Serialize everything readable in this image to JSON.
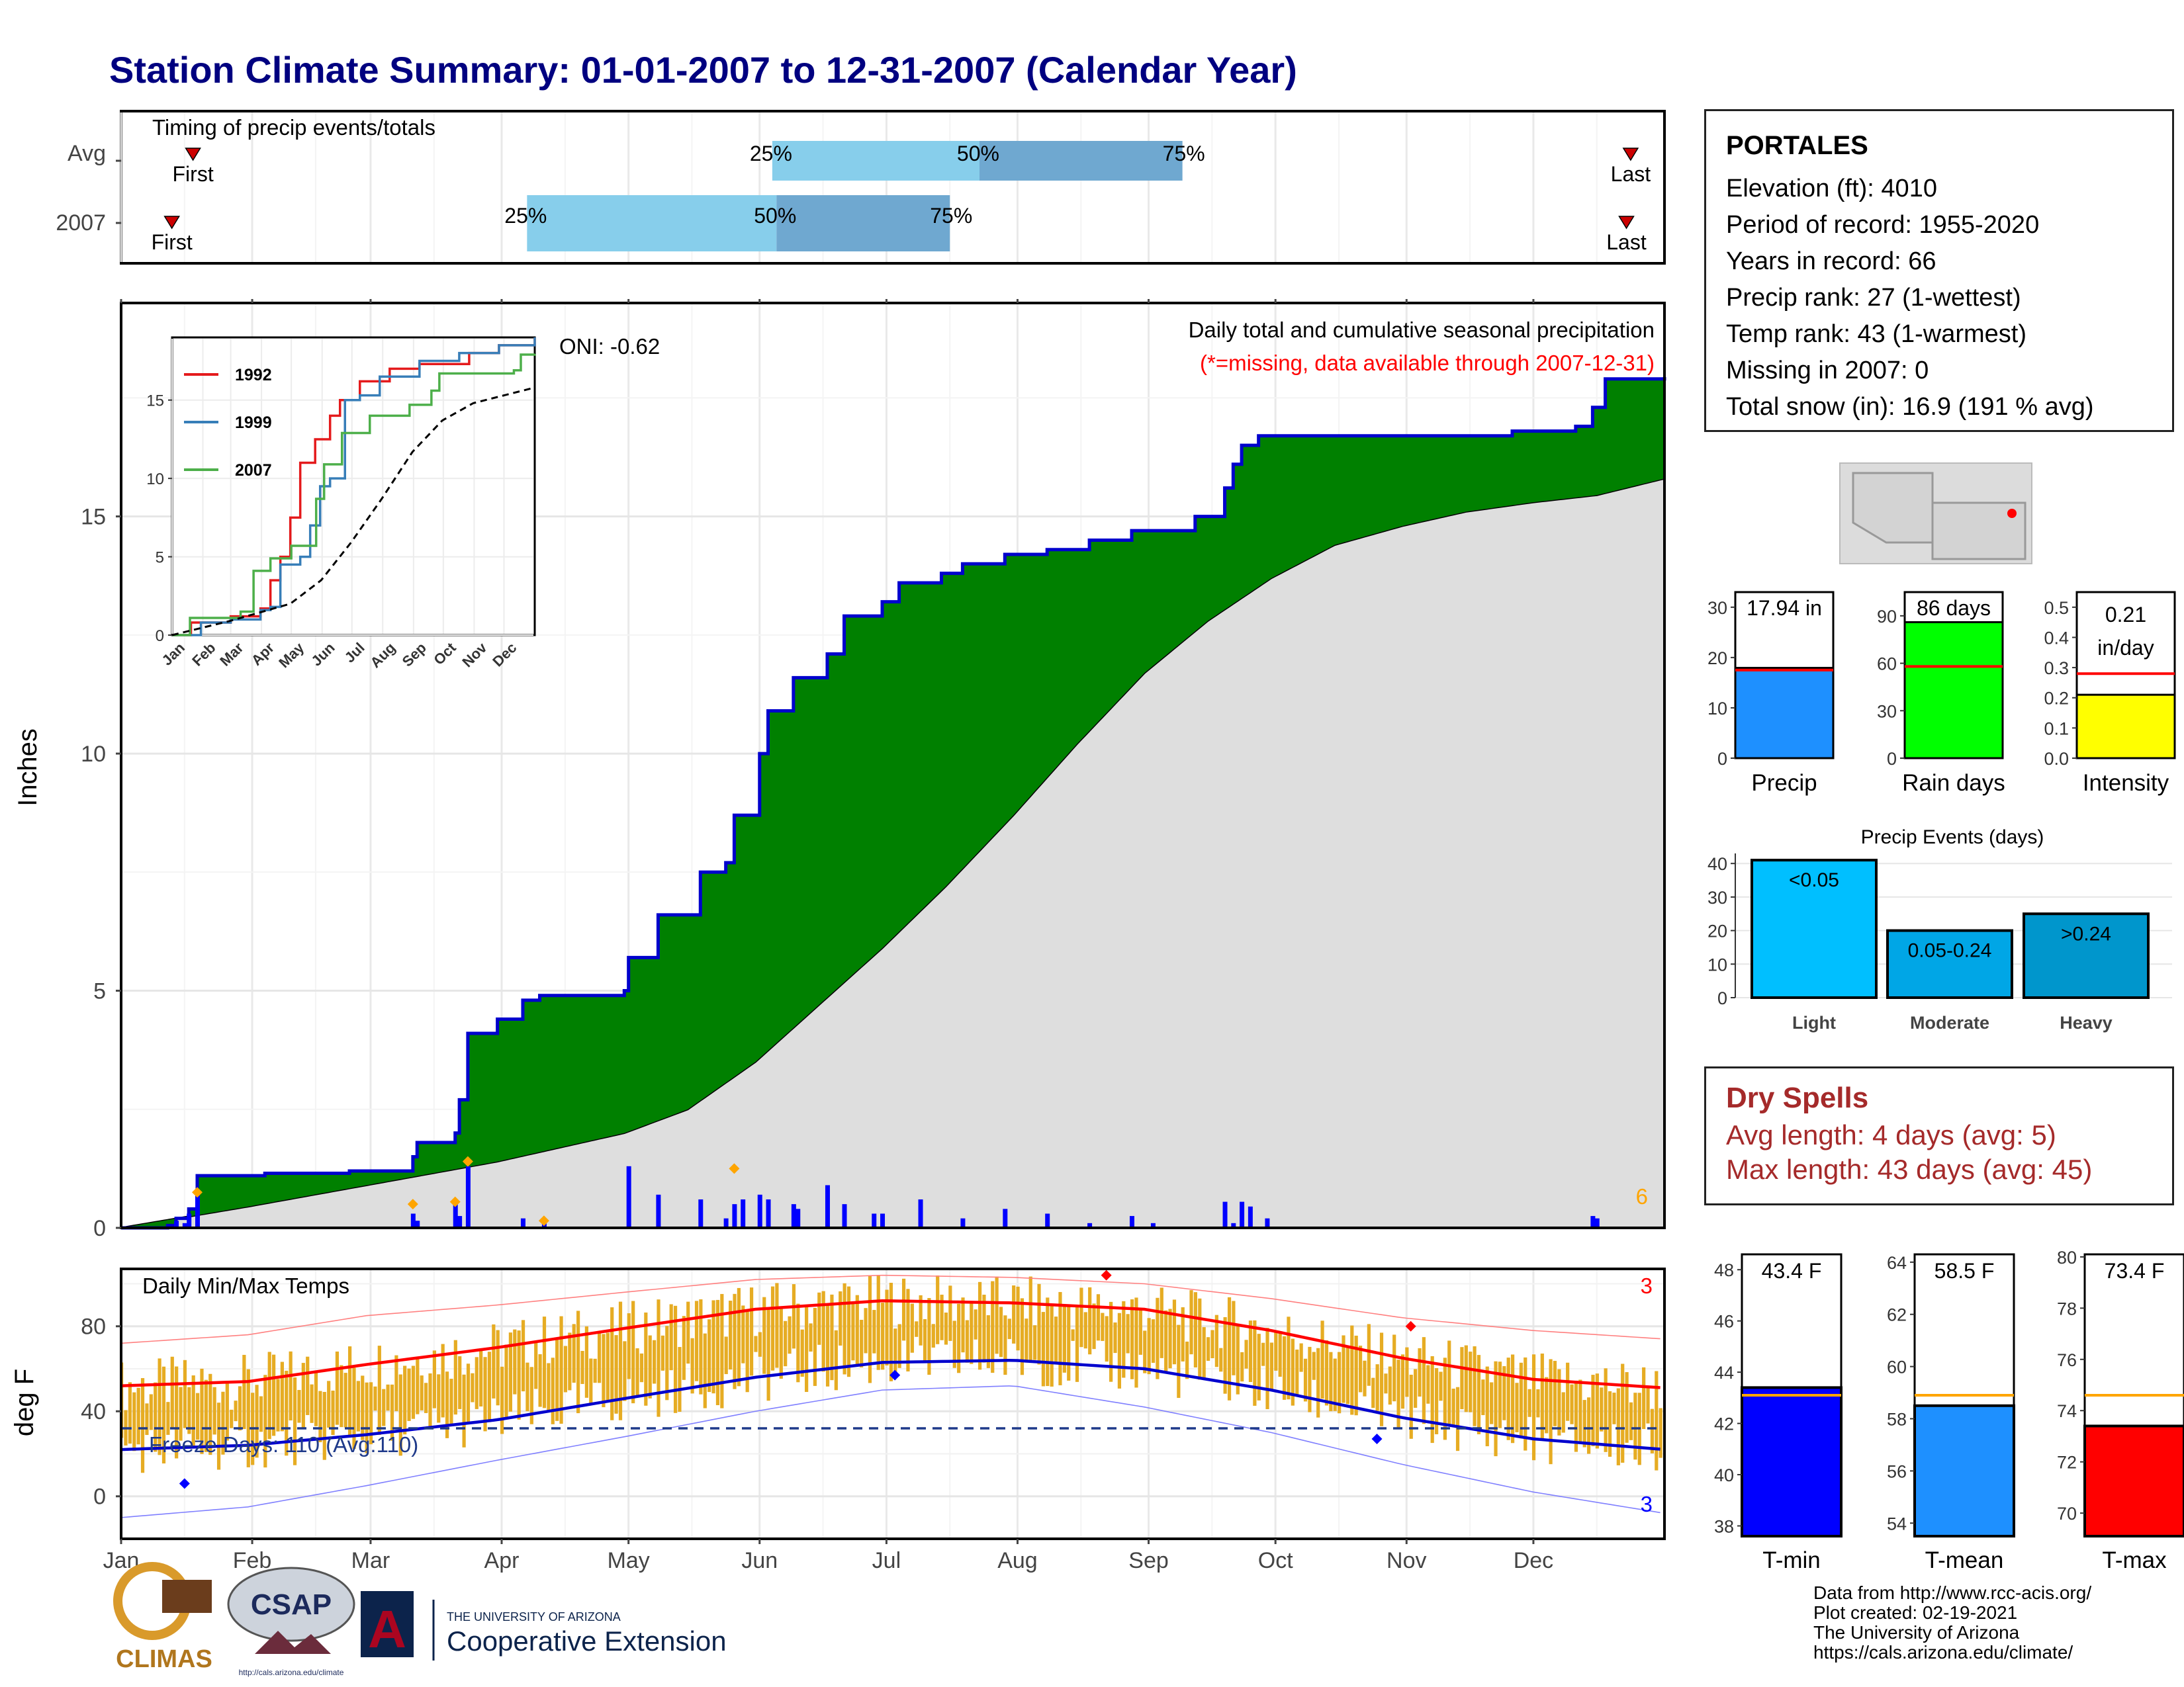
{
  "title": "Station Climate Summary: 01-01-2007 to 12-31-2007 (Calendar Year)",
  "colors": {
    "title": "#000080",
    "light_blue": "#87CEEB",
    "mid_blue": "#6FA8D0",
    "green_fill": "#008000",
    "cum_line": "#0000CD",
    "gray_fill": "#DEDEDE",
    "bar_blue": "#0000FF",
    "diamond_orange": "#FFA500",
    "temp_bar": "#E6AC23",
    "red": "#FF0000",
    "blue": "#0000FF",
    "dry_spell_red": "#A52A2A"
  },
  "timing_panel": {
    "label": "Timing of precip events/totals",
    "rows": [
      "Avg",
      "2007"
    ],
    "first_label": "First",
    "last_label": "Last",
    "pct_labels": [
      "25%",
      "50%",
      "75%"
    ]
  },
  "station_info": {
    "name": "PORTALES",
    "lines": [
      "Elevation (ft): 4010",
      "Period of record: 1955-2020",
      "Years in record: 66",
      "Precip rank: 27 (1-wettest)",
      "Temp rank: 43 (1-warmest)",
      "Missing in 2007: 0",
      "Total snow (in): 16.9 (191 % avg)"
    ]
  },
  "dry_spells": {
    "title": "Dry Spells",
    "line1": "Avg length: 4 days (avg: 5)",
    "line2": "Max length: 43 days (avg: 45)"
  },
  "precip_main": {
    "subtitle": "Daily total and cumulative seasonal precipitation",
    "missing_note": "(*=missing, data available through 2007-12-31)",
    "ylabel": "Inches",
    "count_label": "6",
    "oni_label": "ONI: -0.62"
  },
  "inset": {
    "legend": [
      "1992",
      "1999",
      "2007"
    ],
    "months": [
      "Jan",
      "Feb",
      "Mar",
      "Apr",
      "May",
      "Jun",
      "Jul",
      "Aug",
      "Sep",
      "Oct",
      "Nov",
      "Dec"
    ]
  },
  "temp_panel": {
    "label": "Daily Min/Max Temps",
    "ylabel": "deg F",
    "freeze_label": "Freeze Days: 110 (Avg:110)",
    "max_count": "3",
    "min_count": "3"
  },
  "summary_bars": {
    "precip": {
      "label": "Precip",
      "value_text": "17.94 in"
    },
    "rain_days": {
      "label": "Rain days",
      "value_text": "86 days"
    },
    "intensity": {
      "label": "Intensity",
      "value_text_1": "0.21",
      "value_text_2": "in/day"
    }
  },
  "events_panel": {
    "title": "Precip Events (days)",
    "bar_labels": [
      "<0.05",
      "0.05-0.24",
      ">0.24"
    ],
    "categories": [
      "Light",
      "Moderate",
      "Heavy"
    ]
  },
  "temp_summary": {
    "tmin": {
      "label": "T-min",
      "value_text": "43.4 F"
    },
    "tmean": {
      "label": "T-mean",
      "value_text": "58.5 F"
    },
    "tmax": {
      "label": "T-max",
      "value_text": "73.4 F"
    }
  },
  "footer": {
    "lines": [
      "Data from http://www.rcc-acis.org/",
      "Plot created: 02-19-2021",
      "The University of Arizona",
      "https://cals.arizona.edu/climate/"
    ],
    "logos": {
      "climas": "CLIMAS",
      "csap": "CSAP",
      "csap_url": "http://cals.arizona.edu/climate",
      "uofa_small": "THE UNIVERSITY OF ARIZONA",
      "uofa_big": "Cooperative Extension"
    }
  },
  "chart_data": [
    {
      "type": "bar",
      "id": "timing",
      "title": "Timing of precip events/totals",
      "categories": [
        "Avg",
        "2007"
      ],
      "series": [
        {
          "name": "Avg",
          "first_doy": 18,
          "q25_doy": 155,
          "q50_doy": 204,
          "q75_doy": 252,
          "last_doy": 358
        },
        {
          "name": "2007",
          "first_doy": 13,
          "q25_doy": 97,
          "q50_doy": 156,
          "q75_doy": 197,
          "last_doy": 357
        }
      ],
      "xlim_doy": [
        1,
        366
      ],
      "x_tick_labels": [
        "Jan",
        "Feb",
        "Mar",
        "Apr",
        "May",
        "Jun",
        "Jul",
        "Aug",
        "Sep",
        "Oct",
        "Nov",
        "Dec"
      ]
    },
    {
      "type": "area",
      "id": "cumulative_precip",
      "title": "Daily total and cumulative seasonal precipitation",
      "ylabel": "Inches",
      "ylim": [
        0,
        19.5
      ],
      "y_ticks": [
        0,
        5,
        10,
        15
      ],
      "x_tick_labels": [
        "Jan",
        "Feb",
        "Mar",
        "Apr",
        "May",
        "Jun",
        "Jul",
        "Aug",
        "Sep",
        "Oct",
        "Nov",
        "Dec"
      ],
      "series": [
        {
          "name": "2007 cumulative",
          "steps": [
            [
              1,
              0
            ],
            [
              12,
              0.05
            ],
            [
              14,
              0.2
            ],
            [
              17,
              0.4
            ],
            [
              19,
              1.1
            ],
            [
              35,
              1.15
            ],
            [
              55,
              1.2
            ],
            [
              70,
              1.5
            ],
            [
              71,
              1.8
            ],
            [
              80,
              2.0
            ],
            [
              81,
              2.7
            ],
            [
              83,
              4.1
            ],
            [
              90,
              4.4
            ],
            [
              96,
              4.8
            ],
            [
              100,
              4.9
            ],
            [
              120,
              5.0
            ],
            [
              121,
              5.7
            ],
            [
              128,
              6.6
            ],
            [
              138,
              7.5
            ],
            [
              144,
              7.7
            ],
            [
              146,
              8.7
            ],
            [
              152,
              10.0
            ],
            [
              154,
              10.9
            ],
            [
              160,
              11.6
            ],
            [
              168,
              12.1
            ],
            [
              172,
              12.9
            ],
            [
              181,
              13.2
            ],
            [
              185,
              13.6
            ],
            [
              195,
              13.8
            ],
            [
              200,
              14.0
            ],
            [
              210,
              14.2
            ],
            [
              220,
              14.3
            ],
            [
              230,
              14.5
            ],
            [
              240,
              14.7
            ],
            [
              255,
              15.0
            ],
            [
              262,
              15.6
            ],
            [
              264,
              16.1
            ],
            [
              266,
              16.5
            ],
            [
              270,
              16.7
            ],
            [
              290,
              16.7
            ],
            [
              300,
              16.7
            ],
            [
              330,
              16.8
            ],
            [
              345,
              16.9
            ],
            [
              349,
              17.3
            ],
            [
              352,
              17.9
            ],
            [
              366,
              17.94
            ]
          ]
        },
        {
          "name": "Average cumulative",
          "points": [
            [
              1,
              0
            ],
            [
              31,
              0.45
            ],
            [
              59,
              0.9
            ],
            [
              90,
              1.4
            ],
            [
              120,
              2.0
            ],
            [
              135,
              2.5
            ],
            [
              151,
              3.5
            ],
            [
              166,
              4.7
            ],
            [
              181,
              5.9
            ],
            [
              196,
              7.2
            ],
            [
              212,
              8.7
            ],
            [
              227,
              10.2
            ],
            [
              243,
              11.7
            ],
            [
              258,
              12.8
            ],
            [
              273,
              13.7
            ],
            [
              288,
              14.4
            ],
            [
              304,
              14.8
            ],
            [
              319,
              15.1
            ],
            [
              335,
              15.3
            ],
            [
              350,
              15.45
            ],
            [
              366,
              15.8
            ]
          ]
        }
      ],
      "daily_bars": [
        [
          14,
          0.15
        ],
        [
          16,
          0.1
        ],
        [
          17,
          0.3
        ],
        [
          19,
          0.7
        ],
        [
          70,
          0.3
        ],
        [
          71,
          0.15
        ],
        [
          80,
          0.6
        ],
        [
          81,
          0.25
        ],
        [
          83,
          1.3
        ],
        [
          96,
          0.2
        ],
        [
          101,
          0.1
        ],
        [
          121,
          1.3
        ],
        [
          128,
          0.7
        ],
        [
          138,
          0.6
        ],
        [
          144,
          0.2
        ],
        [
          146,
          0.5
        ],
        [
          148,
          0.6
        ],
        [
          152,
          0.7
        ],
        [
          154,
          0.6
        ],
        [
          160,
          0.5
        ],
        [
          161,
          0.4
        ],
        [
          168,
          0.9
        ],
        [
          172,
          0.5
        ],
        [
          179,
          0.3
        ],
        [
          181,
          0.3
        ],
        [
          190,
          0.6
        ],
        [
          200,
          0.2
        ],
        [
          210,
          0.4
        ],
        [
          220,
          0.3
        ],
        [
          230,
          0.1
        ],
        [
          240,
          0.25
        ],
        [
          245,
          0.1
        ],
        [
          262,
          0.55
        ],
        [
          264,
          0.1
        ],
        [
          266,
          0.55
        ],
        [
          268,
          0.45
        ],
        [
          272,
          0.2
        ],
        [
          349,
          0.25
        ],
        [
          350,
          0.2
        ]
      ],
      "annotations": [
        {
          "text": "ONI: -0.62"
        },
        {
          "text": "6"
        }
      ]
    },
    {
      "type": "line",
      "id": "inset_cumulative",
      "ylim": [
        0,
        19
      ],
      "y_ticks": [
        0,
        5,
        10,
        15
      ],
      "legend": [
        "1992",
        "1999",
        "2007"
      ],
      "series": [
        {
          "name": "1992",
          "points": [
            [
              1,
              0
            ],
            [
              20,
              0.8
            ],
            [
              60,
              1.2
            ],
            [
              90,
              1.7
            ],
            [
              100,
              3.5
            ],
            [
              110,
              5.0
            ],
            [
              120,
              7.5
            ],
            [
              130,
              11.0
            ],
            [
              145,
              12.5
            ],
            [
              160,
              14.0
            ],
            [
              170,
              15.0
            ],
            [
              190,
              16.2
            ],
            [
              220,
              17.0
            ],
            [
              250,
              17.3
            ],
            [
              300,
              18.0
            ],
            [
              330,
              18.5
            ],
            [
              366,
              19.0
            ]
          ]
        },
        {
          "name": "1999",
          "points": [
            [
              1,
              0
            ],
            [
              30,
              0.8
            ],
            [
              60,
              1.0
            ],
            [
              90,
              1.6
            ],
            [
              100,
              1.8
            ],
            [
              110,
              4.5
            ],
            [
              130,
              5.0
            ],
            [
              140,
              7.0
            ],
            [
              150,
              9.5
            ],
            [
              160,
              10.0
            ],
            [
              175,
              15.0
            ],
            [
              190,
              15.3
            ],
            [
              210,
              16.5
            ],
            [
              250,
              17.5
            ],
            [
              290,
              18.0
            ],
            [
              330,
              18.5
            ],
            [
              366,
              19.0
            ]
          ]
        },
        {
          "name": "2007",
          "points": [
            [
              1,
              0
            ],
            [
              19,
              1.1
            ],
            [
              70,
              1.5
            ],
            [
              83,
              4.1
            ],
            [
              100,
              4.9
            ],
            [
              121,
              5.7
            ],
            [
              146,
              8.7
            ],
            [
              154,
              10.9
            ],
            [
              172,
              12.9
            ],
            [
              200,
              14.0
            ],
            [
              240,
              14.7
            ],
            [
              262,
              15.6
            ],
            [
              270,
              16.7
            ],
            [
              345,
              16.9
            ],
            [
              352,
              17.9
            ],
            [
              366,
              17.94
            ]
          ]
        },
        {
          "name": "Average",
          "points": [
            [
              1,
              0
            ],
            [
              59,
              0.9
            ],
            [
              120,
              2.0
            ],
            [
              151,
              3.5
            ],
            [
              181,
              5.9
            ],
            [
              212,
              8.7
            ],
            [
              243,
              11.7
            ],
            [
              273,
              13.7
            ],
            [
              304,
              14.8
            ],
            [
              335,
              15.3
            ],
            [
              366,
              15.8
            ]
          ]
        }
      ]
    },
    {
      "type": "bar",
      "id": "daily_temps",
      "title": "Daily Min/Max Temps",
      "ylabel": "deg F",
      "ylim": [
        -20,
        107
      ],
      "y_ticks": [
        0,
        40,
        80
      ],
      "freeze_line": 32,
      "avg_max": [
        [
          1,
          52
        ],
        [
          31,
          54
        ],
        [
          59,
          62
        ],
        [
          90,
          70
        ],
        [
          120,
          79
        ],
        [
          151,
          88
        ],
        [
          181,
          92
        ],
        [
          212,
          91
        ],
        [
          243,
          88
        ],
        [
          273,
          78
        ],
        [
          304,
          65
        ],
        [
          335,
          55
        ],
        [
          366,
          51
        ]
      ],
      "avg_min": [
        [
          1,
          22
        ],
        [
          31,
          24
        ],
        [
          59,
          29
        ],
        [
          90,
          36
        ],
        [
          120,
          46
        ],
        [
          151,
          56
        ],
        [
          181,
          63
        ],
        [
          212,
          64
        ],
        [
          243,
          60
        ],
        [
          273,
          50
        ],
        [
          304,
          37
        ],
        [
          335,
          27
        ],
        [
          366,
          22
        ]
      ],
      "record_max": [
        [
          1,
          72
        ],
        [
          31,
          76
        ],
        [
          59,
          85
        ],
        [
          90,
          90
        ],
        [
          120,
          96
        ],
        [
          151,
          102
        ],
        [
          181,
          104
        ],
        [
          212,
          103
        ],
        [
          243,
          100
        ],
        [
          273,
          93
        ],
        [
          304,
          84
        ],
        [
          335,
          78
        ],
        [
          366,
          74
        ]
      ],
      "record_min": [
        [
          1,
          -10
        ],
        [
          31,
          -5
        ],
        [
          59,
          5
        ],
        [
          90,
          17
        ],
        [
          120,
          28
        ],
        [
          151,
          40
        ],
        [
          181,
          50
        ],
        [
          212,
          52
        ],
        [
          243,
          42
        ],
        [
          273,
          30
        ],
        [
          304,
          15
        ],
        [
          335,
          2
        ],
        [
          366,
          -8
        ]
      ]
    },
    {
      "type": "bar",
      "id": "summary_precip",
      "categories": [
        "Precip",
        "Rain days",
        "Intensity"
      ],
      "values": [
        17.94,
        86,
        0.21
      ],
      "averages": [
        17.5,
        58,
        0.28
      ],
      "ylims": [
        [
          0,
          33
        ],
        [
          0,
          105
        ],
        [
          0,
          0.55
        ]
      ]
    },
    {
      "type": "bar",
      "id": "precip_events",
      "title": "Precip Events (days)",
      "categories": [
        "Light",
        "Moderate",
        "Heavy"
      ],
      "values": [
        41,
        20,
        25
      ],
      "ylim": [
        0,
        43
      ],
      "y_ticks": [
        0,
        10,
        20,
        30,
        40
      ]
    },
    {
      "type": "bar",
      "id": "temp_summary",
      "categories": [
        "T-min",
        "T-mean",
        "T-max"
      ],
      "values": [
        43.4,
        58.5,
        73.4
      ],
      "averages": [
        43.1,
        58.9,
        74.6
      ],
      "ylims": [
        [
          37.6,
          48.6
        ],
        [
          53.5,
          64.3
        ],
        [
          69.1,
          80.1
        ]
      ]
    }
  ]
}
